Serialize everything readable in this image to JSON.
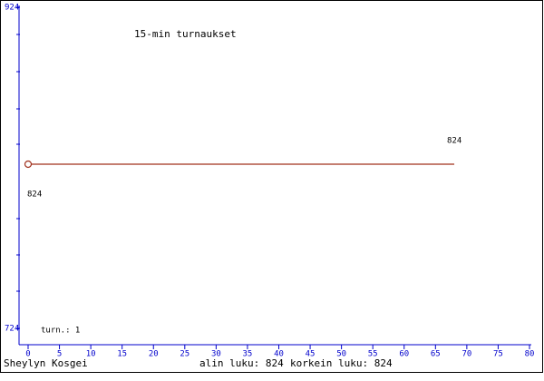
{
  "chart_data": {
    "type": "line",
    "title": "15-min turnaukset",
    "annotation": "turn.: 1",
    "footer_name": "Sheylyn Kosgei",
    "footer_min": "alin luku: 824",
    "footer_max": "korkein luku: 824",
    "x": [
      0,
      68
    ],
    "series": [
      {
        "color": "#a0301c",
        "values": [
          824,
          824
        ]
      }
    ],
    "xlim": [
      0,
      80
    ],
    "xticks": [
      0,
      5,
      10,
      15,
      20,
      25,
      30,
      35,
      40,
      45,
      50,
      55,
      60,
      65,
      70,
      75,
      80
    ],
    "ylim": [
      724,
      924
    ],
    "yticks": [
      724,
      924
    ]
  }
}
